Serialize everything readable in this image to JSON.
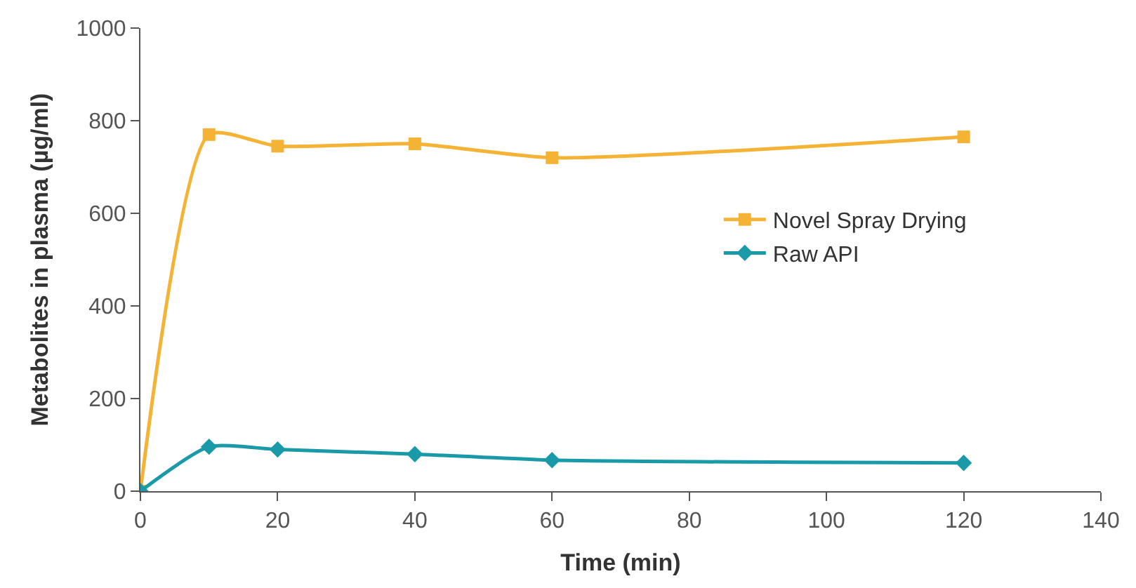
{
  "chart_data": {
    "type": "line",
    "xlabel": "Time (min)",
    "ylabel": "Metabolites in plasma (µg/ml)",
    "x": [
      0,
      10,
      20,
      40,
      60,
      120
    ],
    "series": [
      {
        "name": "Novel Spray Drying",
        "color": "#f5b335",
        "marker": "square",
        "values": [
          0,
          770,
          745,
          750,
          720,
          765
        ]
      },
      {
        "name": "Raw API",
        "color": "#1a9aa8",
        "marker": "diamond",
        "values": [
          0,
          96,
          90,
          80,
          67,
          61
        ]
      }
    ],
    "xlim": [
      0,
      140
    ],
    "xticks": [
      0,
      20,
      40,
      60,
      80,
      100,
      120,
      140
    ],
    "ylim": [
      0,
      1000
    ],
    "yticks": [
      0,
      200,
      400,
      600,
      800,
      1000
    ],
    "legend": "right"
  }
}
